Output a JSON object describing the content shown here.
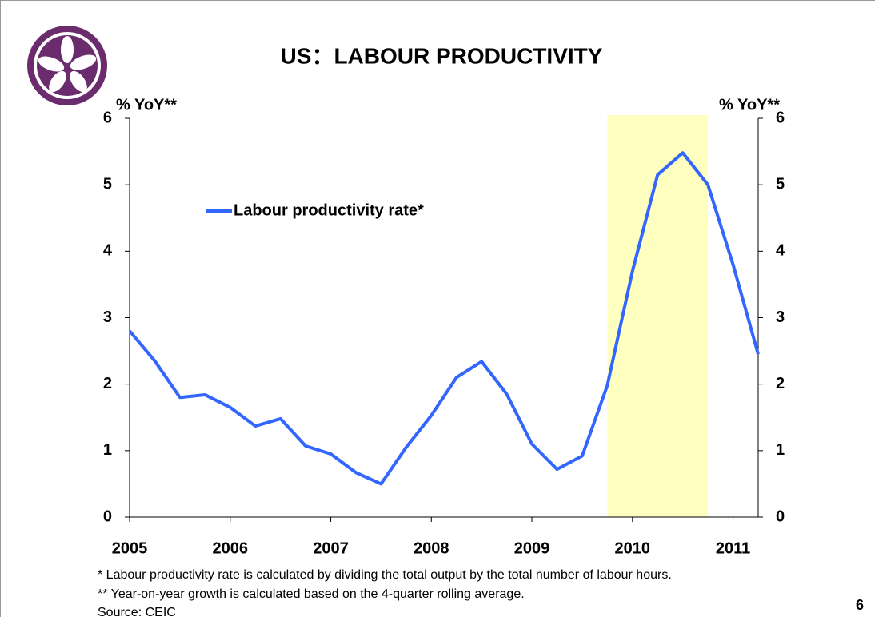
{
  "chart_data": {
    "type": "line",
    "title": "US：LABOUR PRODUCTIVITY",
    "ylabel": "% YoY**",
    "y2label": "% YoY**",
    "x": [
      2005,
      2005.25,
      2005.5,
      2005.75,
      2006,
      2006.25,
      2006.5,
      2006.75,
      2007,
      2007.25,
      2007.5,
      2007.75,
      2008,
      2008.25,
      2008.5,
      2008.75,
      2009,
      2009.25,
      2009.5,
      2009.75,
      2010,
      2010.25,
      2010.5,
      2010.75,
      2011,
      2011.25
    ],
    "series": [
      {
        "name": "Labour productivity rate*",
        "color": "#3366ff",
        "values": [
          2.8,
          2.35,
          1.8,
          1.84,
          1.65,
          1.37,
          1.48,
          1.07,
          0.95,
          0.67,
          0.5,
          1.05,
          1.53,
          2.1,
          2.34,
          1.85,
          1.1,
          0.72,
          0.92,
          1.98,
          3.7,
          5.15,
          5.48,
          5.0,
          3.8,
          2.45
        ]
      }
    ],
    "shaded_region": {
      "range": [
        2009.75,
        2010.75
      ],
      "color": "#ffffc0"
    },
    "xlim": [
      2005,
      2011.25
    ],
    "xticks": [
      2005,
      2006,
      2007,
      2008,
      2009,
      2010,
      2011
    ],
    "ylim": [
      0,
      6
    ],
    "yticks": [
      0,
      1,
      2,
      3,
      4,
      5,
      6
    ],
    "y2lim": [
      0,
      6
    ],
    "y2ticks": [
      0,
      1,
      2,
      3,
      4,
      5,
      6
    ],
    "grid": false,
    "footnotes": [
      "* Labour productivity rate is calculated by dividing the total output by the total number of labour hours.",
      "** Year-on-year growth is calculated based on the 4-quarter rolling average.",
      "Source: CEIC"
    ],
    "page_number": "6"
  }
}
